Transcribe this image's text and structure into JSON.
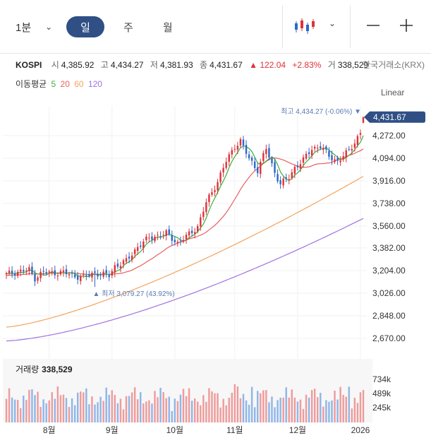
{
  "toolbar": {
    "interval": "1분",
    "periods": [
      "일",
      "주",
      "월"
    ],
    "active_period": "일",
    "chart_type_icon": "candlestick-icon",
    "zoom_out_icon": "minus-icon",
    "zoom_in_icon": "plus-icon"
  },
  "quote": {
    "symbol": "KOSPI",
    "open_label": "시",
    "open": "4,385.92",
    "high_label": "고",
    "high": "4,434.27",
    "low_label": "저",
    "low": "4,381.93",
    "close_label": "종",
    "close": "4,431.67",
    "change": "▲ 122.04",
    "change_pct": "+2.83%",
    "volume_label": "거",
    "volume": "338,529",
    "exchange": "한국거래소(KRX)"
  },
  "moving_average": {
    "label": "이동평균",
    "periods": [
      {
        "period": "5",
        "color": "#3cae3c"
      },
      {
        "period": "20",
        "color": "#e8605e"
      },
      {
        "period": "60",
        "color": "#f2a45e"
      },
      {
        "period": "120",
        "color": "#a172e0"
      }
    ]
  },
  "scale_mode": "Linear",
  "colors": {
    "up": "#e0323a",
    "down": "#2f67c8",
    "vol_up": "#ef9b9b",
    "vol_down": "#8fb6e8",
    "current_tag": "#2f4f85"
  },
  "annotations": {
    "high": "최고 4,434.27 (-0.06%) ▼",
    "low": "▲ 최저 3,079.27 (43.92%)",
    "current_price": "4,431.67"
  },
  "volume": {
    "label": "거래량",
    "value": "338,529",
    "ticks": [
      "734k",
      "489k",
      "245k"
    ]
  },
  "chart_data": {
    "type": "candlestick",
    "ylim": [
      2580,
      4520
    ],
    "y_ticks": [
      "4,272.00",
      "4,094.00",
      "3,916.00",
      "3,738.00",
      "3,560.00",
      "3,382.00",
      "3,204.00",
      "3,026.00",
      "2,848.00",
      "2,670.00"
    ],
    "x_ticks": [
      "8월",
      "9월",
      "10월",
      "11월",
      "12월",
      "2026"
    ],
    "x_tick_positions": [
      15,
      37,
      59,
      80,
      102,
      124
    ],
    "key_closes": [
      [
        0,
        3180
      ],
      [
        5,
        3205
      ],
      [
        8,
        3215
      ],
      [
        10,
        3150
      ],
      [
        13,
        3200
      ],
      [
        15,
        3190
      ],
      [
        20,
        3195
      ],
      [
        24,
        3165
      ],
      [
        27,
        3160
      ],
      [
        31,
        3190
      ],
      [
        36,
        3170
      ],
      [
        38,
        3245
      ],
      [
        42,
        3285
      ],
      [
        46,
        3400
      ],
      [
        50,
        3470
      ],
      [
        56,
        3505
      ],
      [
        60,
        3430
      ],
      [
        63,
        3480
      ],
      [
        67,
        3560
      ],
      [
        70,
        3750
      ],
      [
        74,
        3920
      ],
      [
        77,
        4080
      ],
      [
        80,
        4200
      ],
      [
        82,
        4240
      ],
      [
        85,
        4100
      ],
      [
        88,
        4010
      ],
      [
        91,
        4180
      ],
      [
        94,
        3990
      ],
      [
        96,
        3900
      ],
      [
        99,
        3950
      ],
      [
        101,
        4030
      ],
      [
        104,
        4090
      ],
      [
        107,
        4180
      ],
      [
        110,
        4200
      ],
      [
        113,
        4120
      ],
      [
        116,
        4080
      ],
      [
        119,
        4140
      ],
      [
        122,
        4230
      ],
      [
        124,
        4310
      ],
      [
        125,
        4431.67
      ]
    ],
    "last_candle": {
      "open": 4385.92,
      "high": 4434.27,
      "low": 4381.93,
      "close": 4431.67
    },
    "high_point": {
      "index": 125,
      "value": 4434.27
    },
    "low_point": {
      "index": 31,
      "value": 3079.27
    },
    "ma5_end": 4300,
    "ma20_end": 4140,
    "ma60_end": 3960,
    "ma120_end": 3625,
    "ma60_start": 2760,
    "ma120_start": 2650,
    "volume_max_k": 1000,
    "volume_typical_k": 430
  }
}
